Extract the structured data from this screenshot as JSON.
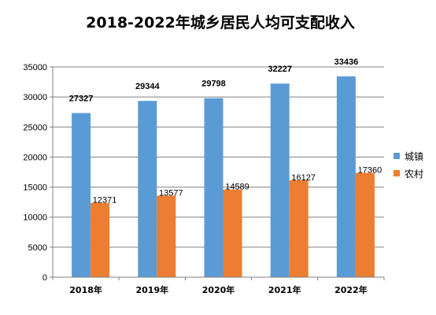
{
  "chart_data": {
    "type": "bar",
    "title": "2018-2022年城乡居民人均可支配收入",
    "categories": [
      "2018年",
      "2019年",
      "2020年",
      "2021年",
      "2022年"
    ],
    "series": [
      {
        "name": "城镇",
        "color": "#5b9bd5",
        "values": [
          27327,
          29344,
          29798,
          32227,
          33436
        ]
      },
      {
        "name": "农村",
        "color": "#ed7d31",
        "values": [
          12371,
          13577,
          14589,
          16127,
          17360
        ]
      }
    ],
    "ylim": [
      0,
      35000
    ],
    "yticks": [
      0,
      5000,
      10000,
      15000,
      20000,
      25000,
      30000,
      35000
    ],
    "grid": true,
    "legend": "right"
  }
}
